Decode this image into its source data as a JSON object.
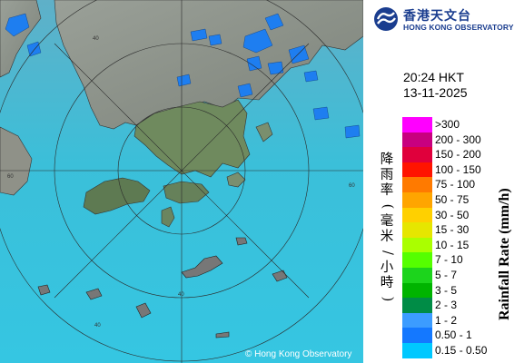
{
  "header": {
    "logo_cn": "香港天文台",
    "logo_en": "HONG KONG OBSERVATORY",
    "time": "20:24 HKT",
    "date": "13-11-2025"
  },
  "legend": {
    "title_en": "Rainfall Rate (mm/h)",
    "title_cn": "降雨率(毫米/小時)",
    "items": [
      {
        "label": ">300",
        "color": "#ff00ff"
      },
      {
        "label": "200 - 300",
        "color": "#c8007f"
      },
      {
        "label": "150 - 200",
        "color": "#e0003c"
      },
      {
        "label": "100 - 150",
        "color": "#ff1400"
      },
      {
        "label": "75 - 100",
        "color": "#ff7a00"
      },
      {
        "label": "50 - 75",
        "color": "#ffa500"
      },
      {
        "label": "30 - 50",
        "color": "#ffd000"
      },
      {
        "label": "15 - 30",
        "color": "#e6e600"
      },
      {
        "label": "10 - 15",
        "color": "#aaff00"
      },
      {
        "label": "7 - 10",
        "color": "#55ff00"
      },
      {
        "label": "5 - 7",
        "color": "#1cd41c"
      },
      {
        "label": "3 - 5",
        "color": "#00b400"
      },
      {
        "label": "2 - 3",
        "color": "#008c46"
      },
      {
        "label": "1 - 2",
        "color": "#3c9cff"
      },
      {
        "label": "0.50 - 1",
        "color": "#1478ff"
      },
      {
        "label": "0.15 - 0.50",
        "color": "#00c8ff"
      }
    ]
  },
  "map": {
    "copyright": "© Hong Kong Observatory",
    "ring_labels": [
      "40",
      "60",
      "40",
      "60",
      "40"
    ],
    "sea_color": "#3cc0d8",
    "land_color": "#8a8f86",
    "rain_color": "#1478ff"
  }
}
